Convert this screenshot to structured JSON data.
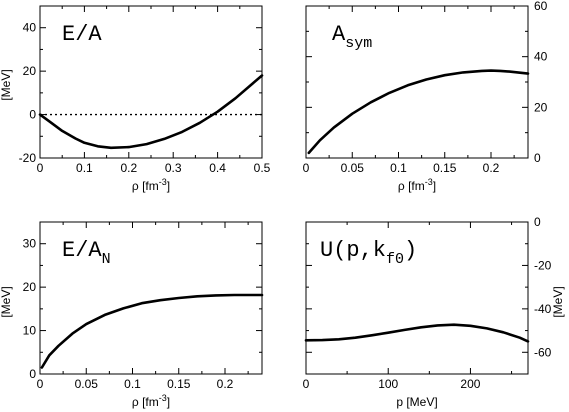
{
  "chart_data": [
    {
      "type": "line",
      "title": "E/A",
      "title_sub": "",
      "xlabel": "ρ  [fm",
      "xlabel_sup": "-3",
      "xlabel_tail": "]",
      "ylabel": "[MeV]",
      "y_axis_side": "left",
      "xlim": [
        0,
        0.5
      ],
      "ylim": [
        -20,
        50
      ],
      "xticks": [
        0,
        0.1,
        0.2,
        0.3,
        0.4,
        0.5
      ],
      "xtick_labels": [
        "0",
        "0.1",
        "0.2",
        "0.3",
        "0.4",
        "0.5"
      ],
      "yticks": [
        -20,
        0,
        20,
        40
      ],
      "ytick_labels": [
        "-20",
        "0",
        "20",
        "40"
      ],
      "reference_line": {
        "y": 0,
        "style": "dotted"
      },
      "series": [
        {
          "x": [
            0,
            0.02,
            0.05,
            0.08,
            0.1,
            0.13,
            0.16,
            0.2,
            0.24,
            0.28,
            0.32,
            0.36,
            0.4,
            0.44,
            0.48,
            0.5
          ],
          "y": [
            0,
            -3,
            -7.5,
            -11,
            -13,
            -14.6,
            -15.3,
            -15,
            -13.6,
            -11.2,
            -8,
            -3.8,
            1.3,
            7.5,
            14.5,
            18
          ]
        }
      ]
    },
    {
      "type": "line",
      "title": "A",
      "title_sub": "sym",
      "xlabel": "ρ  [fm",
      "xlabel_sup": "-3",
      "xlabel_tail": "]",
      "ylabel": "",
      "y_axis_side": "right",
      "xlim": [
        0,
        0.24
      ],
      "ylim": [
        0,
        60
      ],
      "xticks": [
        0,
        0.05,
        0.1,
        0.15,
        0.2
      ],
      "xtick_labels": [
        "0",
        "0.05",
        "0.1",
        "0.15",
        "0.2"
      ],
      "yticks": [
        0,
        20,
        40,
        60
      ],
      "ytick_labels": [
        "0",
        "20",
        "40",
        "60"
      ],
      "series": [
        {
          "x": [
            0.003,
            0.015,
            0.03,
            0.05,
            0.07,
            0.09,
            0.11,
            0.13,
            0.15,
            0.17,
            0.19,
            0.2,
            0.21,
            0.22,
            0.24
          ],
          "y": [
            2,
            7,
            12,
            17.5,
            22,
            25.7,
            28.7,
            31,
            32.7,
            33.8,
            34.4,
            34.5,
            34.4,
            34.1,
            33.3
          ]
        }
      ]
    },
    {
      "type": "line",
      "title": "E/A",
      "title_sub": "N",
      "xlabel": "ρ [fm",
      "xlabel_sup": "-3",
      "xlabel_tail": "]",
      "ylabel": "[MeV]",
      "y_axis_side": "left",
      "xlim": [
        0,
        0.24
      ],
      "ylim": [
        0,
        35
      ],
      "xticks": [
        0,
        0.05,
        0.1,
        0.15,
        0.2
      ],
      "xtick_labels": [
        "0",
        "0.05",
        "0.1",
        "0.15",
        "0.2"
      ],
      "yticks": [
        0,
        10,
        20,
        30
      ],
      "ytick_labels": [
        "0",
        "10",
        "20",
        "30"
      ],
      "series": [
        {
          "x": [
            0.002,
            0.01,
            0.02,
            0.035,
            0.05,
            0.07,
            0.09,
            0.11,
            0.13,
            0.15,
            0.17,
            0.19,
            0.21,
            0.23,
            0.24
          ],
          "y": [
            1.5,
            4.3,
            6.5,
            9.3,
            11.5,
            13.6,
            15.1,
            16.3,
            17,
            17.5,
            17.9,
            18.1,
            18.2,
            18.2,
            18.2
          ]
        }
      ]
    },
    {
      "type": "line",
      "title": "U(p,k",
      "title_sub": "f0",
      "title_tail": ")",
      "xlabel": "p [MeV]",
      "xlabel_sup": "",
      "xlabel_tail": "",
      "ylabel": "[MeV]",
      "y_axis_side": "right",
      "xlim": [
        0,
        270
      ],
      "ylim": [
        -70,
        0
      ],
      "xticks": [
        0,
        100,
        200
      ],
      "xtick_labels": [
        "0",
        "100",
        "200"
      ],
      "yticks": [
        -60,
        -40,
        -20,
        0
      ],
      "ytick_labels": [
        "-60",
        "-40",
        "-20",
        "0"
      ],
      "series": [
        {
          "x": [
            0,
            20,
            40,
            60,
            80,
            100,
            120,
            140,
            160,
            180,
            200,
            220,
            240,
            260,
            270
          ],
          "y": [
            -54.5,
            -54.4,
            -54,
            -53.3,
            -52.2,
            -51,
            -49.7,
            -48.5,
            -47.6,
            -47.3,
            -47.8,
            -49,
            -50.8,
            -53.3,
            -55
          ]
        }
      ]
    }
  ]
}
